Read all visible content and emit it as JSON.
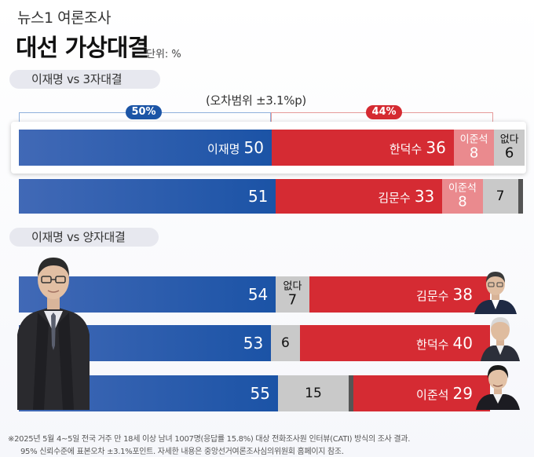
{
  "header": {
    "publisher": "뉴스1 여론조사",
    "title": "대선 가상대결",
    "unit": "단위: %"
  },
  "colors": {
    "blue": "#1c55a6",
    "red": "#d52a31",
    "pink": "#ea8a8e",
    "gray": "#c9c9c9",
    "dark": "#555555"
  },
  "chart_data": {
    "type": "bar",
    "orientation": "horizontal-stacked-100",
    "sections": [
      {
        "label": "이재명 vs 3자대결",
        "margin_of_error": "(오차범위 ±3.1%p)",
        "groups": [
          {
            "label": "50%",
            "color": "blue"
          },
          {
            "label": "44%",
            "color": "red"
          }
        ],
        "rows": [
          {
            "highlighted": true,
            "segments": [
              {
                "name": "이재명",
                "value": 50,
                "display": "50",
                "color": "blue"
              },
              {
                "name": "한덕수",
                "value": 36,
                "display": "36",
                "color": "red"
              },
              {
                "name": "이준석",
                "value": 8,
                "display": "8",
                "color": "pink"
              },
              {
                "name": "없다",
                "value": 6,
                "display": "6",
                "color": "gray"
              }
            ]
          },
          {
            "highlighted": false,
            "segments": [
              {
                "name": "",
                "value": 51,
                "display": "51",
                "color": "blue"
              },
              {
                "name": "김문수",
                "value": 33,
                "display": "33",
                "color": "red"
              },
              {
                "name": "이준석",
                "value": 8,
                "display": "8",
                "color": "pink"
              },
              {
                "name": "",
                "value": 7,
                "display": "7",
                "color": "gray"
              },
              {
                "name": "",
                "value": 1,
                "display": "",
                "color": "dark"
              }
            ]
          }
        ]
      },
      {
        "label": "이재명 vs 양자대결",
        "rows": [
          {
            "segments": [
              {
                "name": "",
                "value": 54,
                "display": "54",
                "color": "blue"
              },
              {
                "name": "없다",
                "value": 7,
                "display": "7",
                "color": "gray"
              },
              {
                "name": "김문수",
                "value": 38,
                "display": "38",
                "color": "red"
              }
            ]
          },
          {
            "segments": [
              {
                "name": "",
                "value": 53,
                "display": "53",
                "color": "blue"
              },
              {
                "name": "",
                "value": 6,
                "display": "6",
                "color": "gray"
              },
              {
                "name": "한덕수",
                "value": 40,
                "display": "40",
                "color": "red"
              }
            ]
          },
          {
            "segments": [
              {
                "name": "",
                "value": 55,
                "display": "55",
                "color": "blue"
              },
              {
                "name": "",
                "value": 15,
                "display": "15",
                "color": "gray"
              },
              {
                "name": "",
                "value": 1,
                "display": "",
                "color": "dark"
              },
              {
                "name": "이준석",
                "value": 29,
                "display": "29",
                "color": "red"
              }
            ]
          }
        ]
      }
    ]
  },
  "footnote": {
    "line1": "※2025년 5월 4~5일 전국 거주 만 18세 이상 남녀 1007명(응답률 15.8%) 대상 전화조사원 인터뷰(CATI) 방식의 조사 결과.",
    "line2": "95% 신뢰수준에 표본오차 ±3.1%포인트. 자세한 내용은 중앙선거여론조사심의위원회 홈페이지 참조."
  }
}
